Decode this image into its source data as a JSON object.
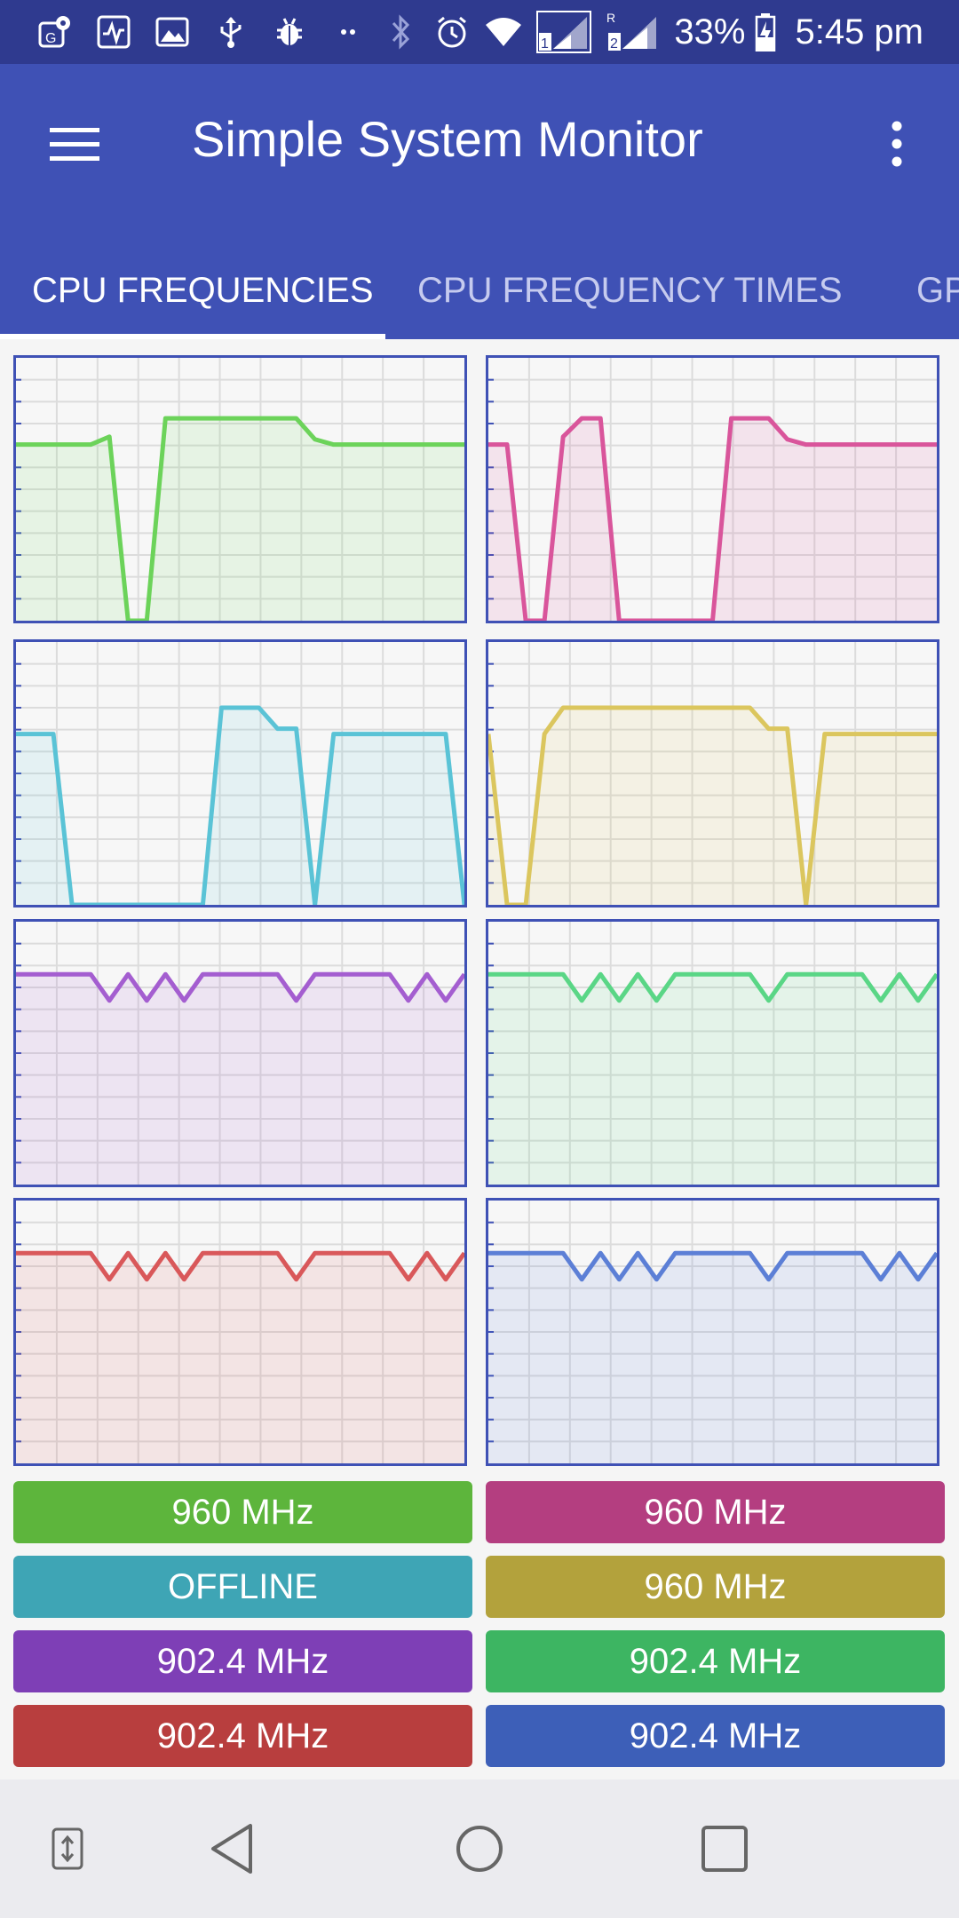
{
  "status_bar": {
    "battery_percent": "33%",
    "time": "5:45 pm",
    "icons_left": [
      "maps-icon",
      "activity-icon",
      "image-icon",
      "usb-icon",
      "bug-icon",
      "more-notifications-icon"
    ],
    "icons_right": [
      "bluetooth-icon",
      "alarm-icon",
      "wifi-icon",
      "signal-sim1-icon",
      "signal-sim2-icon",
      "battery-charging-icon"
    ],
    "sim1_label": "1",
    "sim2_label": "2",
    "roaming_label": "R"
  },
  "app_bar": {
    "title": "Simple System Monitor",
    "menu_icon": "hamburger-menu-icon",
    "overflow_icon": "overflow-menu-icon"
  },
  "tabs": [
    {
      "label": "CPU FREQUENCIES",
      "active": true
    },
    {
      "label": "CPU FREQUENCY TIMES",
      "active": false
    },
    {
      "label": "GPU",
      "active": false
    }
  ],
  "cores": [
    {
      "color": "#6cd35a",
      "button_color": "#5db53c",
      "label": "960 MHz",
      "chart_data": {
        "type": "area",
        "ylim": [
          0,
          1
        ],
        "values": [
          0.67,
          0.67,
          0.67,
          0.67,
          0.67,
          0.7,
          0.0,
          0.0,
          0.77,
          0.77,
          0.77,
          0.77,
          0.77,
          0.77,
          0.77,
          0.77,
          0.69,
          0.67,
          0.67,
          0.67,
          0.67,
          0.67,
          0.67,
          0.67,
          0.67
        ]
      }
    },
    {
      "color": "#d9559b",
      "button_color": "#b43e80",
      "label": "960 MHz",
      "chart_data": {
        "type": "area",
        "ylim": [
          0,
          1
        ],
        "values": [
          0.67,
          0.67,
          0.0,
          0.0,
          0.7,
          0.77,
          0.77,
          0.0,
          0.0,
          0.0,
          0.0,
          0.0,
          0.0,
          0.77,
          0.77,
          0.77,
          0.69,
          0.67,
          0.67,
          0.67,
          0.67,
          0.67,
          0.67,
          0.67,
          0.67
        ]
      }
    },
    {
      "color": "#5ac3d6",
      "button_color": "#3ea5b5",
      "label": "OFFLINE",
      "chart_data": {
        "type": "area",
        "ylim": [
          0,
          1
        ],
        "values": [
          0.65,
          0.65,
          0.65,
          0.0,
          0.0,
          0.0,
          0.0,
          0.0,
          0.0,
          0.0,
          0.0,
          0.75,
          0.75,
          0.75,
          0.67,
          0.67,
          0.0,
          0.65,
          0.65,
          0.65,
          0.65,
          0.65,
          0.65,
          0.65,
          0.0
        ]
      }
    },
    {
      "color": "#dbc65e",
      "button_color": "#b3a23c",
      "label": "960 MHz",
      "chart_data": {
        "type": "area",
        "ylim": [
          0,
          1
        ],
        "values": [
          0.65,
          0.0,
          0.0,
          0.65,
          0.75,
          0.75,
          0.75,
          0.75,
          0.75,
          0.75,
          0.75,
          0.75,
          0.75,
          0.75,
          0.75,
          0.67,
          0.67,
          0.0,
          0.65,
          0.65,
          0.65,
          0.65,
          0.65,
          0.65,
          0.65
        ]
      }
    },
    {
      "color": "#a45ed0",
      "button_color": "#7e3fb6",
      "label": "902.4 MHz",
      "chart_data": {
        "type": "area",
        "ylim": [
          0,
          1
        ],
        "values": [
          0.8,
          0.8,
          0.8,
          0.8,
          0.8,
          0.7,
          0.8,
          0.7,
          0.8,
          0.7,
          0.8,
          0.8,
          0.8,
          0.8,
          0.8,
          0.7,
          0.8,
          0.8,
          0.8,
          0.8,
          0.8,
          0.7,
          0.8,
          0.7,
          0.8
        ]
      }
    },
    {
      "color": "#5ad686",
      "button_color": "#3db562",
      "label": "902.4 MHz",
      "chart_data": {
        "type": "area",
        "ylim": [
          0,
          1
        ],
        "values": [
          0.8,
          0.8,
          0.8,
          0.8,
          0.8,
          0.7,
          0.8,
          0.7,
          0.8,
          0.7,
          0.8,
          0.8,
          0.8,
          0.8,
          0.8,
          0.7,
          0.8,
          0.8,
          0.8,
          0.8,
          0.8,
          0.7,
          0.8,
          0.7,
          0.8
        ]
      }
    },
    {
      "color": "#d9585a",
      "button_color": "#b83e3e",
      "label": "902.4 MHz",
      "chart_data": {
        "type": "area",
        "ylim": [
          0,
          1
        ],
        "values": [
          0.8,
          0.8,
          0.8,
          0.8,
          0.8,
          0.7,
          0.8,
          0.7,
          0.8,
          0.7,
          0.8,
          0.8,
          0.8,
          0.8,
          0.8,
          0.7,
          0.8,
          0.8,
          0.8,
          0.8,
          0.8,
          0.7,
          0.8,
          0.7,
          0.8
        ]
      }
    },
    {
      "color": "#5c7fd6",
      "button_color": "#3d5fb8",
      "label": "902.4 MHz",
      "chart_data": {
        "type": "area",
        "ylim": [
          0,
          1
        ],
        "values": [
          0.8,
          0.8,
          0.8,
          0.8,
          0.8,
          0.7,
          0.8,
          0.7,
          0.8,
          0.7,
          0.8,
          0.8,
          0.8,
          0.8,
          0.8,
          0.7,
          0.8,
          0.8,
          0.8,
          0.8,
          0.8,
          0.7,
          0.8,
          0.7,
          0.8
        ]
      }
    }
  ],
  "nav_bar": {
    "icons": [
      "rotate-screen-icon",
      "back-icon",
      "home-icon",
      "recents-icon"
    ]
  }
}
